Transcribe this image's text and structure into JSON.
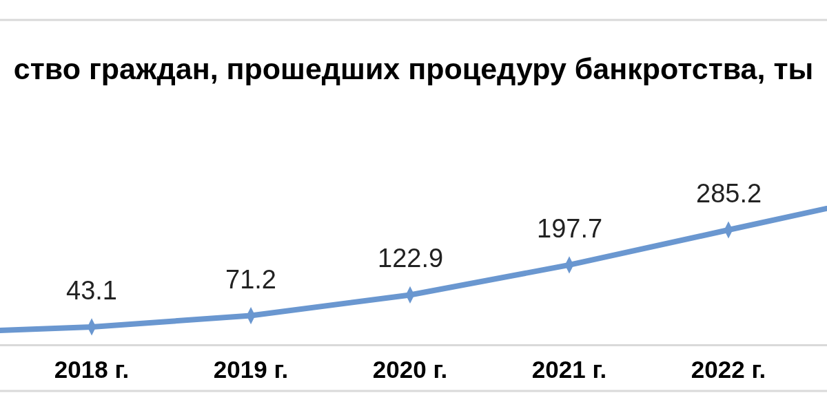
{
  "chart_data": {
    "type": "line",
    "title": "ство граждан, прошедших процедуру банкротства, ты",
    "categories": [
      null,
      "2018 г.",
      "2019 г.",
      "2020 г.",
      "2021 г.",
      "2022 г.",
      null
    ],
    "series": [
      {
        "color": "#6a97d0",
        "values": [
          28,
          43.1,
          71.2,
          122.9,
          197.7,
          285.2,
          372
        ],
        "value_labels": [
          null,
          "43.1",
          "71.2",
          "122.9",
          "197.7",
          "285.2",
          null
        ]
      }
    ],
    "tick_labels": "x",
    "marker": "diamond",
    "line_style": "solid"
  }
}
